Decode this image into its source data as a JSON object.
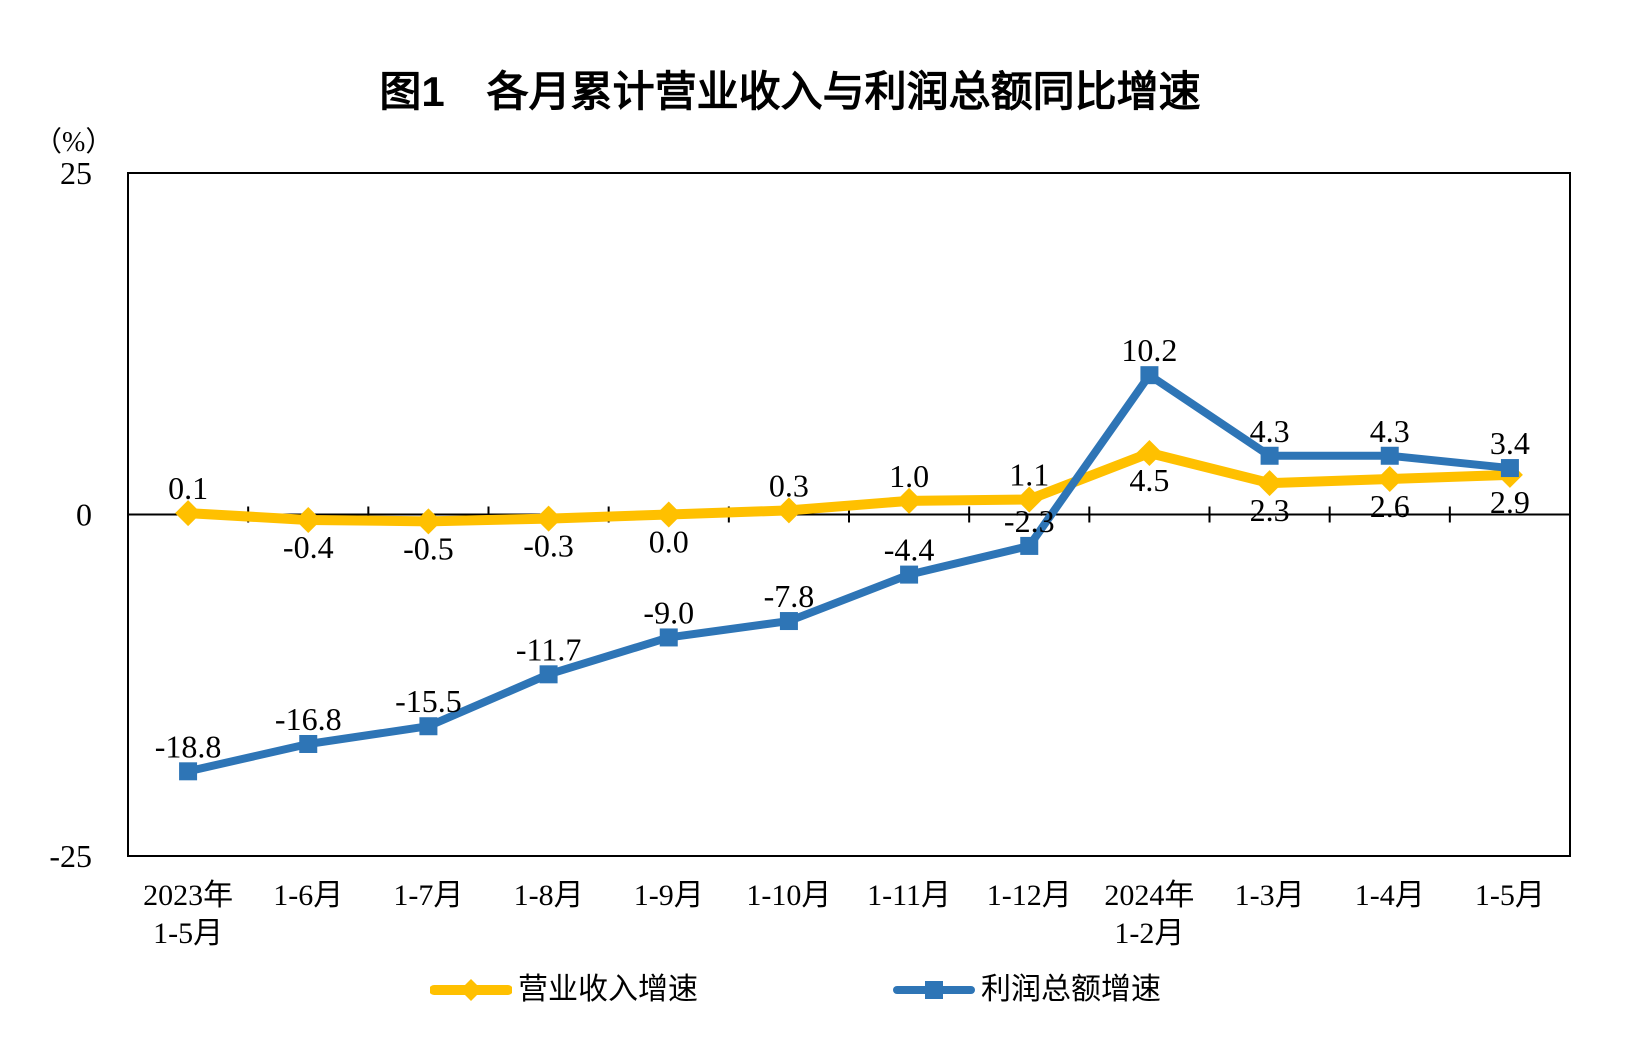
{
  "chart_data": {
    "type": "line",
    "title": "图1　各月累计营业收入与利润总额同比增速",
    "unit_label": "（%）",
    "y_axis": {
      "min": -25,
      "max": 25,
      "tick_values": [
        25,
        0,
        -25
      ],
      "tick_labels": [
        "25",
        "0",
        "-25"
      ]
    },
    "categories": [
      {
        "line1": "2023年",
        "line2": "1-5月"
      },
      {
        "line1": "1-6月",
        "line2": ""
      },
      {
        "line1": "1-7月",
        "line2": ""
      },
      {
        "line1": "1-8月",
        "line2": ""
      },
      {
        "line1": "1-9月",
        "line2": ""
      },
      {
        "line1": "1-10月",
        "line2": ""
      },
      {
        "line1": "1-11月",
        "line2": ""
      },
      {
        "line1": "1-12月",
        "line2": ""
      },
      {
        "line1": "2024年",
        "line2": "1-2月"
      },
      {
        "line1": "1-3月",
        "line2": ""
      },
      {
        "line1": "1-4月",
        "line2": ""
      },
      {
        "line1": "1-5月",
        "line2": ""
      }
    ],
    "series": [
      {
        "name": "营业收入增速",
        "color": "#FFC000",
        "marker": "diamond",
        "values": [
          0.1,
          -0.4,
          -0.5,
          -0.3,
          0.0,
          0.3,
          1.0,
          1.1,
          4.5,
          2.3,
          2.6,
          2.9
        ],
        "labels": [
          "0.1",
          "-0.4",
          "-0.5",
          "-0.3",
          "0.0",
          "0.3",
          "1.0",
          "1.1",
          "4.5",
          "2.3",
          "2.6",
          "2.9"
        ],
        "label_positions": [
          "above",
          "below",
          "below",
          "below",
          "below",
          "above",
          "above",
          "above",
          "below",
          "below",
          "below",
          "below"
        ]
      },
      {
        "name": "利润总额增速",
        "color": "#2E75B6",
        "marker": "square",
        "values": [
          -18.8,
          -16.8,
          -15.5,
          -11.7,
          -9.0,
          -7.8,
          -4.4,
          -2.3,
          10.2,
          4.3,
          4.3,
          3.4
        ],
        "labels": [
          "-18.8",
          "-16.8",
          "-15.5",
          "-11.7",
          "-9.0",
          "-7.8",
          "-4.4",
          "-2.3",
          "10.2",
          "4.3",
          "4.3",
          "3.4"
        ],
        "label_positions": [
          "above",
          "above",
          "above",
          "above",
          "above",
          "above",
          "above",
          "above",
          "above",
          "above",
          "above",
          "above"
        ]
      }
    ],
    "legend": {
      "position": "bottom",
      "items": [
        "营业收入增速",
        "利润总额增速"
      ]
    },
    "grid": "off"
  }
}
